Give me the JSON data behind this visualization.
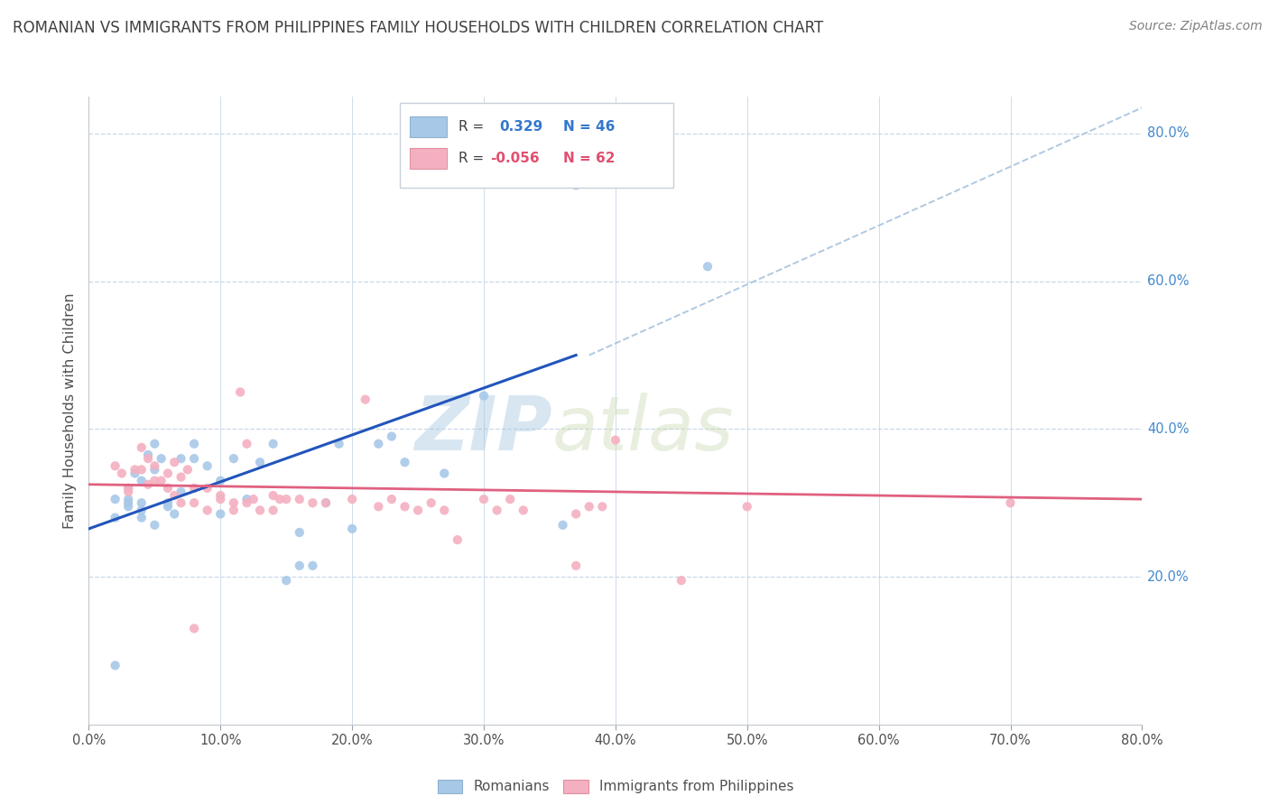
{
  "title": "ROMANIAN VS IMMIGRANTS FROM PHILIPPINES FAMILY HOUSEHOLDS WITH CHILDREN CORRELATION CHART",
  "source": "Source: ZipAtlas.com",
  "xlabel_ticks": [
    "0.0%",
    "10.0%",
    "20.0%",
    "30.0%",
    "40.0%",
    "50.0%",
    "60.0%",
    "70.0%",
    "80.0%"
  ],
  "ylabel_ticks_right": [
    "80.0%",
    "60.0%",
    "40.0%",
    "20.0%"
  ],
  "ylabel_ticks_right_vals": [
    0.8,
    0.6,
    0.4,
    0.2
  ],
  "ylabel_label": "Family Households with Children",
  "xlim": [
    0,
    0.8
  ],
  "ylim": [
    0.0,
    0.85
  ],
  "color_blue": "#a8c8e8",
  "color_pink": "#f4b0c0",
  "line_blue": "#2255bb",
  "line_pink": "#e06080",
  "line_dash_color": "#b0c8e0",
  "watermark_zip": "ZIP",
  "watermark_atlas": "atlas",
  "blue_points": [
    [
      0.02,
      0.28
    ],
    [
      0.02,
      0.305
    ],
    [
      0.03,
      0.3
    ],
    [
      0.03,
      0.295
    ],
    [
      0.03,
      0.32
    ],
    [
      0.03,
      0.305
    ],
    [
      0.035,
      0.34
    ],
    [
      0.04,
      0.3
    ],
    [
      0.04,
      0.28
    ],
    [
      0.04,
      0.29
    ],
    [
      0.04,
      0.33
    ],
    [
      0.045,
      0.365
    ],
    [
      0.05,
      0.27
    ],
    [
      0.05,
      0.345
    ],
    [
      0.05,
      0.38
    ],
    [
      0.055,
      0.36
    ],
    [
      0.06,
      0.295
    ],
    [
      0.06,
      0.3
    ],
    [
      0.065,
      0.285
    ],
    [
      0.07,
      0.315
    ],
    [
      0.07,
      0.36
    ],
    [
      0.08,
      0.36
    ],
    [
      0.08,
      0.38
    ],
    [
      0.09,
      0.35
    ],
    [
      0.1,
      0.33
    ],
    [
      0.1,
      0.285
    ],
    [
      0.11,
      0.36
    ],
    [
      0.12,
      0.305
    ],
    [
      0.13,
      0.355
    ],
    [
      0.14,
      0.38
    ],
    [
      0.15,
      0.195
    ],
    [
      0.16,
      0.215
    ],
    [
      0.16,
      0.26
    ],
    [
      0.17,
      0.215
    ],
    [
      0.18,
      0.3
    ],
    [
      0.19,
      0.38
    ],
    [
      0.2,
      0.265
    ],
    [
      0.22,
      0.38
    ],
    [
      0.23,
      0.39
    ],
    [
      0.24,
      0.355
    ],
    [
      0.27,
      0.34
    ],
    [
      0.3,
      0.445
    ],
    [
      0.36,
      0.27
    ],
    [
      0.37,
      0.73
    ],
    [
      0.47,
      0.62
    ],
    [
      0.02,
      0.08
    ]
  ],
  "pink_points": [
    [
      0.02,
      0.35
    ],
    [
      0.025,
      0.34
    ],
    [
      0.03,
      0.315
    ],
    [
      0.03,
      0.32
    ],
    [
      0.035,
      0.345
    ],
    [
      0.04,
      0.345
    ],
    [
      0.04,
      0.375
    ],
    [
      0.045,
      0.36
    ],
    [
      0.045,
      0.325
    ],
    [
      0.05,
      0.35
    ],
    [
      0.05,
      0.33
    ],
    [
      0.055,
      0.33
    ],
    [
      0.06,
      0.32
    ],
    [
      0.06,
      0.34
    ],
    [
      0.065,
      0.31
    ],
    [
      0.065,
      0.355
    ],
    [
      0.07,
      0.335
    ],
    [
      0.07,
      0.3
    ],
    [
      0.075,
      0.345
    ],
    [
      0.08,
      0.32
    ],
    [
      0.08,
      0.3
    ],
    [
      0.09,
      0.32
    ],
    [
      0.09,
      0.29
    ],
    [
      0.1,
      0.305
    ],
    [
      0.1,
      0.31
    ],
    [
      0.11,
      0.29
    ],
    [
      0.11,
      0.3
    ],
    [
      0.115,
      0.45
    ],
    [
      0.12,
      0.38
    ],
    [
      0.12,
      0.3
    ],
    [
      0.125,
      0.305
    ],
    [
      0.13,
      0.29
    ],
    [
      0.14,
      0.31
    ],
    [
      0.14,
      0.29
    ],
    [
      0.145,
      0.305
    ],
    [
      0.15,
      0.305
    ],
    [
      0.16,
      0.305
    ],
    [
      0.17,
      0.3
    ],
    [
      0.18,
      0.3
    ],
    [
      0.2,
      0.305
    ],
    [
      0.21,
      0.44
    ],
    [
      0.22,
      0.295
    ],
    [
      0.23,
      0.305
    ],
    [
      0.24,
      0.295
    ],
    [
      0.25,
      0.29
    ],
    [
      0.26,
      0.3
    ],
    [
      0.27,
      0.29
    ],
    [
      0.28,
      0.25
    ],
    [
      0.3,
      0.305
    ],
    [
      0.31,
      0.29
    ],
    [
      0.32,
      0.305
    ],
    [
      0.33,
      0.29
    ],
    [
      0.37,
      0.215
    ],
    [
      0.37,
      0.285
    ],
    [
      0.38,
      0.295
    ],
    [
      0.39,
      0.295
    ],
    [
      0.4,
      0.385
    ],
    [
      0.45,
      0.195
    ],
    [
      0.5,
      0.295
    ],
    [
      0.7,
      0.3
    ],
    [
      0.08,
      0.13
    ]
  ],
  "blue_line_x": [
    0.0,
    0.37
  ],
  "blue_line_y": [
    0.265,
    0.5
  ],
  "pink_line_x": [
    0.0,
    0.8
  ],
  "pink_line_y": [
    0.325,
    0.305
  ],
  "dash_line_x": [
    0.38,
    0.8
  ],
  "dash_line_y": [
    0.5,
    0.835
  ]
}
